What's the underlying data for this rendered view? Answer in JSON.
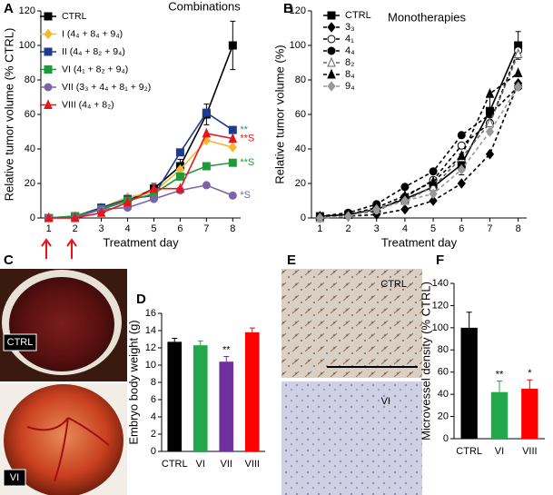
{
  "chart_data": [
    {
      "panel": "A",
      "type": "line",
      "title": "Combinations",
      "xlabel": "Treatment day",
      "ylabel": "Relative tumor volume (% CTRL)",
      "x": [
        1,
        2,
        3,
        4,
        5,
        6,
        7,
        8
      ],
      "xlim": [
        0.7,
        8.3
      ],
      "xticks": [
        1,
        2,
        3,
        4,
        5,
        6,
        7,
        8
      ],
      "ylim": [
        0,
        120
      ],
      "yticks": [
        0,
        20,
        40,
        60,
        80,
        100,
        120
      ],
      "series": [
        {
          "name": "CTRL",
          "color": "#000000",
          "marker": "square",
          "values": [
            0,
            1,
            5,
            10,
            17,
            30,
            60,
            100
          ],
          "errors": [
            0,
            1,
            1,
            2,
            3,
            4,
            6,
            14
          ]
        },
        {
          "name": "I (4₄ + 8₄ + 9₄)",
          "color": "#f5b731",
          "marker": "diamond",
          "values": [
            0,
            1,
            6,
            12,
            15,
            28,
            45,
            41
          ]
        },
        {
          "name": "II (4₄ + 8₂ + 9₄)",
          "color": "#1f3b8f",
          "marker": "square",
          "values": [
            0,
            1,
            6,
            11,
            13,
            38,
            61,
            51
          ],
          "annotation": "**",
          "annotation_color": "#2a8a8a"
        },
        {
          "name": "VI (4₁ + 8₂ + 9₄)",
          "color": "#1f9a3a",
          "marker": "square",
          "values": [
            0,
            1,
            5,
            10,
            14,
            24,
            30,
            32
          ],
          "annotation": "**S"
        },
        {
          "name": "VII (3₃ + 4₄ + 8₁ + 9₂)",
          "color": "#7b64a8",
          "marker": "circle",
          "values": [
            0,
            0,
            5,
            6,
            11,
            16,
            19,
            13
          ],
          "annotation": "*S"
        },
        {
          "name": "VIII (4₄ + 8₂)",
          "color": "#e8141b",
          "marker": "triangle",
          "values": [
            0,
            0,
            3,
            9,
            17,
            17,
            49,
            46
          ],
          "annotation": "**S"
        }
      ]
    },
    {
      "panel": "B",
      "type": "line",
      "title": "Monotherapies",
      "xlabel": "Treatment day",
      "ylabel": "Relative tumor volume (%)",
      "x": [
        1,
        2,
        3,
        4,
        5,
        6,
        7,
        8
      ],
      "xlim": [
        0.7,
        8.3
      ],
      "xticks": [
        1,
        2,
        3,
        4,
        5,
        6,
        7,
        8
      ],
      "ylim": [
        0,
        120
      ],
      "yticks": [
        0,
        20,
        40,
        60,
        80,
        100,
        120
      ],
      "series": [
        {
          "name": "CTRL",
          "color": "#000000",
          "marker": "square",
          "linestyle": "solid",
          "values": [
            1,
            2,
            5,
            11,
            18,
            31,
            62,
            100
          ],
          "errors": [
            0,
            1,
            2,
            3,
            4,
            6,
            8,
            8
          ]
        },
        {
          "name": "3₃",
          "color": "#000000",
          "marker": "diamond",
          "linestyle": "dashed",
          "values": [
            0,
            1,
            2,
            5,
            10,
            20,
            37,
            78
          ]
        },
        {
          "name": "4₁",
          "color": "#000000",
          "marker": "open-circle",
          "linestyle": "dashed",
          "values": [
            0,
            2,
            4,
            12,
            22,
            42,
            55,
            97
          ]
        },
        {
          "name": "4₄",
          "color": "#000000",
          "marker": "circle",
          "linestyle": "dashed",
          "values": [
            1,
            3,
            8,
            18,
            27,
            48,
            60,
            76
          ]
        },
        {
          "name": "8₂",
          "color": "#666666",
          "marker": "open-triangle",
          "linestyle": "dashed",
          "values": [
            0,
            2,
            5,
            10,
            18,
            35,
            55,
            95
          ]
        },
        {
          "name": "8₄",
          "color": "#000000",
          "marker": "triangle",
          "linestyle": "dashed",
          "values": [
            1,
            2,
            6,
            13,
            21,
            36,
            72,
            84
          ]
        },
        {
          "name": "9₄",
          "color": "#999999",
          "marker": "diamond",
          "linestyle": "dashed",
          "values": [
            0,
            1,
            5,
            10,
            14,
            28,
            50,
            76
          ]
        }
      ]
    },
    {
      "panel": "D",
      "type": "bar",
      "ylabel": "Embryo body weight (g)",
      "categories": [
        "CTRL",
        "VI",
        "VII",
        "VIII"
      ],
      "values": [
        12.7,
        12.3,
        10.4,
        13.8
      ],
      "errors": [
        0.4,
        0.5,
        0.6,
        0.5
      ],
      "colors": [
        "#000000",
        "#22a84a",
        "#7030a0",
        "#ff0000"
      ],
      "annotations": [
        null,
        null,
        "**",
        null
      ],
      "ylim": [
        0,
        16
      ],
      "yticks": [
        0,
        2,
        4,
        6,
        8,
        10,
        12,
        14,
        16
      ]
    },
    {
      "panel": "F",
      "type": "bar",
      "ylabel": "Microvessel density (% CTRL)",
      "categories": [
        "CTRL",
        "VI",
        "VIII"
      ],
      "values": [
        100,
        42,
        45
      ],
      "errors": [
        14,
        10,
        8
      ],
      "colors": [
        "#000000",
        "#22a84a",
        "#ff0000"
      ],
      "annotations": [
        null,
        "**",
        "*"
      ],
      "ylim": [
        0,
        140
      ],
      "yticks": [
        0,
        20,
        40,
        60,
        80,
        100,
        120,
        140
      ]
    }
  ],
  "images": [
    {
      "panel": "C",
      "labels": [
        "CTRL",
        "VI"
      ]
    },
    {
      "panel": "E",
      "labels": [
        "CTRL",
        "VI"
      ]
    }
  ]
}
